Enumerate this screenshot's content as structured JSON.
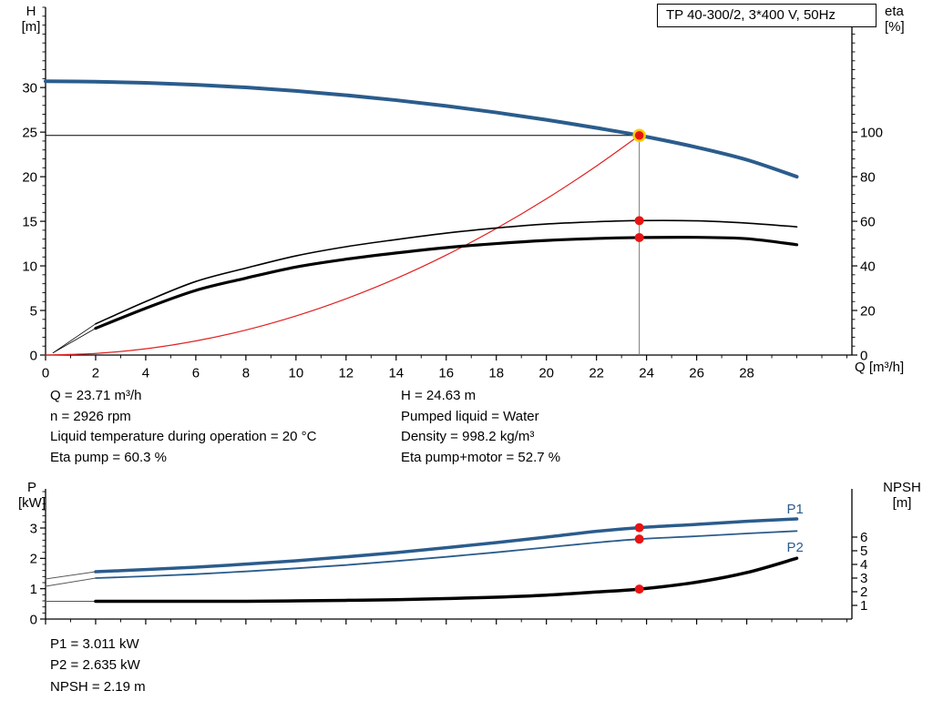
{
  "colors": {
    "pump_blue": "#2b5c8c",
    "curve_black": "#000000",
    "system_red": "#e02020",
    "marker_red": "#e81414",
    "marker_ring": "#ffcc00",
    "axis": "#000000",
    "duty_vline_gray": "#777777"
  },
  "info_left": {
    "q": "Q = 23.71 m³/h",
    "n": "n = 2926 rpm",
    "temp": "Liquid temperature during operation = 20 °C",
    "eta_pump": "Eta pump = 60.3 %"
  },
  "info_right": {
    "h": "H = 24.63 m",
    "liquid": "Pumped liquid = Water",
    "density": "Density = 998.2 kg/m³",
    "eta_total": "Eta pump+motor = 52.7 %"
  },
  "results": {
    "p1": "P1 = 3.011 kW",
    "p2": "P2 = 2.635 kW",
    "npsh": "NPSH = 2.19 m"
  },
  "chart_data": [
    {
      "type": "line",
      "name": "hq-eta-chart",
      "title_box": "TP 40-300/2, 3*400 V, 50Hz",
      "x": {
        "min": 0,
        "max": 32.2,
        "label": "Q [m³/h]",
        "major_ticks": [
          0,
          2,
          4,
          6,
          8,
          10,
          12,
          14,
          16,
          18,
          20,
          22,
          24,
          26,
          28
        ],
        "minor_step": 1,
        "show_labels": true
      },
      "y_left": {
        "min": 0,
        "max": 39,
        "label_lines": [
          "H",
          "[m]"
        ],
        "major_ticks": [
          0,
          5,
          10,
          15,
          20,
          25,
          30
        ],
        "minor_step": 1
      },
      "y_right": {
        "min": 0,
        "max": 156,
        "label_lines": [
          "eta",
          "[%]"
        ],
        "major_ticks": [
          0,
          20,
          40,
          60,
          80,
          100
        ],
        "minor_step": 4
      },
      "duty": {
        "q": 23.71,
        "h": 24.63
      },
      "series": [
        {
          "name": "system-curve",
          "axis": "left",
          "color": "#e02020",
          "width": 1.2,
          "points": [
            [
              0,
              0
            ],
            [
              2,
              0.18
            ],
            [
              4,
              0.7
            ],
            [
              6,
              1.58
            ],
            [
              8,
              2.8
            ],
            [
              10,
              4.38
            ],
            [
              12,
              6.31
            ],
            [
              14,
              8.58
            ],
            [
              16,
              11.21
            ],
            [
              18,
              14.19
            ],
            [
              20,
              17.52
            ],
            [
              22,
              21.2
            ],
            [
              23.71,
              24.63
            ]
          ]
        },
        {
          "name": "eta-pump-lowflow",
          "axis": "right",
          "color": "#000000",
          "width": 0.8,
          "points": [
            [
              0.3,
              1
            ],
            [
              2,
              14
            ]
          ]
        },
        {
          "name": "eta-pump-motor-lowflow",
          "axis": "right",
          "color": "#000000",
          "width": 0.8,
          "points": [
            [
              0.3,
              1
            ],
            [
              2,
              12
            ]
          ]
        },
        {
          "name": "eta-pump-curve",
          "axis": "right",
          "color": "#000000",
          "width": 1.6,
          "points": [
            [
              2,
              14
            ],
            [
              4,
              24
            ],
            [
              6,
              33
            ],
            [
              8,
              39
            ],
            [
              10,
              44.5
            ],
            [
              12,
              48.6
            ],
            [
              14,
              51.8
            ],
            [
              16,
              54.7
            ],
            [
              18,
              57
            ],
            [
              20,
              58.8
            ],
            [
              22,
              59.8
            ],
            [
              23.71,
              60.3
            ],
            [
              26,
              60.2
            ],
            [
              28,
              59.2
            ],
            [
              30,
              57.5
            ]
          ]
        },
        {
          "name": "eta-pump-motor-curve",
          "axis": "right",
          "color": "#000000",
          "width": 3.2,
          "points": [
            [
              2,
              12
            ],
            [
              4,
              21
            ],
            [
              6,
              29
            ],
            [
              8,
              34.5
            ],
            [
              10,
              39.5
            ],
            [
              12,
              43
            ],
            [
              14,
              45.8
            ],
            [
              16,
              48.2
            ],
            [
              18,
              50
            ],
            [
              20,
              51.4
            ],
            [
              22,
              52.3
            ],
            [
              23.71,
              52.7
            ],
            [
              26,
              52.8
            ],
            [
              28,
              52.2
            ],
            [
              30,
              49.5
            ]
          ]
        },
        {
          "name": "pump-hq-curve",
          "axis": "left",
          "color": "#2b5c8c",
          "width": 4,
          "points": [
            [
              0,
              30.7
            ],
            [
              2,
              30.66
            ],
            [
              4,
              30.53
            ],
            [
              6,
              30.31
            ],
            [
              8,
              30.01
            ],
            [
              10,
              29.62
            ],
            [
              12,
              29.14
            ],
            [
              14,
              28.58
            ],
            [
              16,
              27.94
            ],
            [
              18,
              27.2
            ],
            [
              20,
              26.38
            ],
            [
              22,
              25.47
            ],
            [
              23.71,
              24.63
            ],
            [
              26,
              23.3
            ],
            [
              28,
              21.9
            ],
            [
              30,
              20.0
            ]
          ]
        }
      ],
      "markers": [
        {
          "q": 23.71,
          "v": 24.63,
          "axis": "left",
          "r": 6,
          "ring": true,
          "name": "duty-point-marker"
        },
        {
          "q": 23.71,
          "v": 60.3,
          "axis": "right",
          "r": 5,
          "name": "eta-pump-marker"
        },
        {
          "q": 23.71,
          "v": 52.7,
          "axis": "right",
          "r": 5,
          "name": "eta-pump-motor-marker"
        }
      ],
      "curve_labels": []
    },
    {
      "type": "line",
      "name": "power-npsh-chart",
      "x": {
        "min": 0,
        "max": 32.2,
        "label": "",
        "major_ticks": [
          0,
          2,
          4,
          6,
          8,
          10,
          12,
          14,
          16,
          18,
          20,
          22,
          24,
          26,
          28
        ],
        "minor_step": 1,
        "show_labels": false
      },
      "y_left": {
        "min": 0,
        "max": 4.29,
        "label_lines": [
          "P",
          "[kW]"
        ],
        "major_ticks": [
          0,
          1,
          2,
          3
        ],
        "minor_step": 0.2
      },
      "y_right": {
        "min": 0,
        "max": 9.53,
        "label_lines": [
          "NPSH",
          "[m]"
        ],
        "major_ticks": [
          1,
          2,
          3,
          4,
          5,
          6
        ],
        "minor_step": 0
      },
      "series": [
        {
          "name": "p1-lowflow",
          "axis": "left",
          "color": "#555555",
          "width": 0.9,
          "points": [
            [
              0,
              1.32
            ],
            [
              2,
              1.56
            ]
          ]
        },
        {
          "name": "p2-lowflow",
          "axis": "left",
          "color": "#555555",
          "width": 0.9,
          "points": [
            [
              0,
              1.08
            ],
            [
              2,
              1.35
            ]
          ]
        },
        {
          "name": "npsh-lowflow",
          "axis": "right",
          "color": "#555555",
          "width": 0.9,
          "points": [
            [
              0,
              1.3
            ],
            [
              2,
              1.3
            ]
          ]
        },
        {
          "name": "p2-curve",
          "axis": "left",
          "color": "#2b5c8c",
          "width": 1.8,
          "points": [
            [
              2,
              1.35
            ],
            [
              4,
              1.41
            ],
            [
              6,
              1.48
            ],
            [
              8,
              1.57
            ],
            [
              10,
              1.67
            ],
            [
              12,
              1.78
            ],
            [
              14,
              1.91
            ],
            [
              16,
              2.05
            ],
            [
              18,
              2.2
            ],
            [
              20,
              2.36
            ],
            [
              22,
              2.52
            ],
            [
              23.71,
              2.635
            ],
            [
              26,
              2.73
            ],
            [
              28,
              2.82
            ],
            [
              30,
              2.9
            ]
          ]
        },
        {
          "name": "p1-curve",
          "axis": "left",
          "color": "#2b5c8c",
          "width": 3.5,
          "points": [
            [
              2,
              1.56
            ],
            [
              4,
              1.63
            ],
            [
              6,
              1.71
            ],
            [
              8,
              1.81
            ],
            [
              10,
              1.92
            ],
            [
              12,
              2.05
            ],
            [
              14,
              2.19
            ],
            [
              16,
              2.35
            ],
            [
              18,
              2.52
            ],
            [
              20,
              2.7
            ],
            [
              22,
              2.89
            ],
            [
              23.71,
              3.011
            ],
            [
              26,
              3.12
            ],
            [
              28,
              3.22
            ],
            [
              30,
              3.3
            ]
          ]
        },
        {
          "name": "npsh-curve",
          "axis": "right",
          "color": "#000000",
          "width": 3.5,
          "points": [
            [
              2,
              1.3
            ],
            [
              4,
              1.3
            ],
            [
              6,
              1.3
            ],
            [
              8,
              1.3
            ],
            [
              10,
              1.33
            ],
            [
              12,
              1.37
            ],
            [
              14,
              1.42
            ],
            [
              16,
              1.5
            ],
            [
              18,
              1.6
            ],
            [
              20,
              1.75
            ],
            [
              22,
              1.98
            ],
            [
              23.71,
              2.19
            ],
            [
              26,
              2.7
            ],
            [
              28,
              3.4
            ],
            [
              30,
              4.45
            ]
          ]
        }
      ],
      "markers": [
        {
          "q": 23.71,
          "v": 3.011,
          "axis": "left",
          "r": 5,
          "name": "p1-marker"
        },
        {
          "q": 23.71,
          "v": 2.635,
          "axis": "left",
          "r": 5,
          "name": "p2-marker"
        },
        {
          "q": 23.71,
          "v": 2.19,
          "axis": "right",
          "r": 5,
          "name": "npsh-marker"
        }
      ],
      "curve_labels": [
        {
          "text": "P1",
          "q": 29.6,
          "v": 3.48,
          "axis": "left",
          "color": "#2b5c8c"
        },
        {
          "text": "P2",
          "q": 29.6,
          "v": 2.22,
          "axis": "left",
          "color": "#2b5c8c"
        }
      ]
    }
  ]
}
